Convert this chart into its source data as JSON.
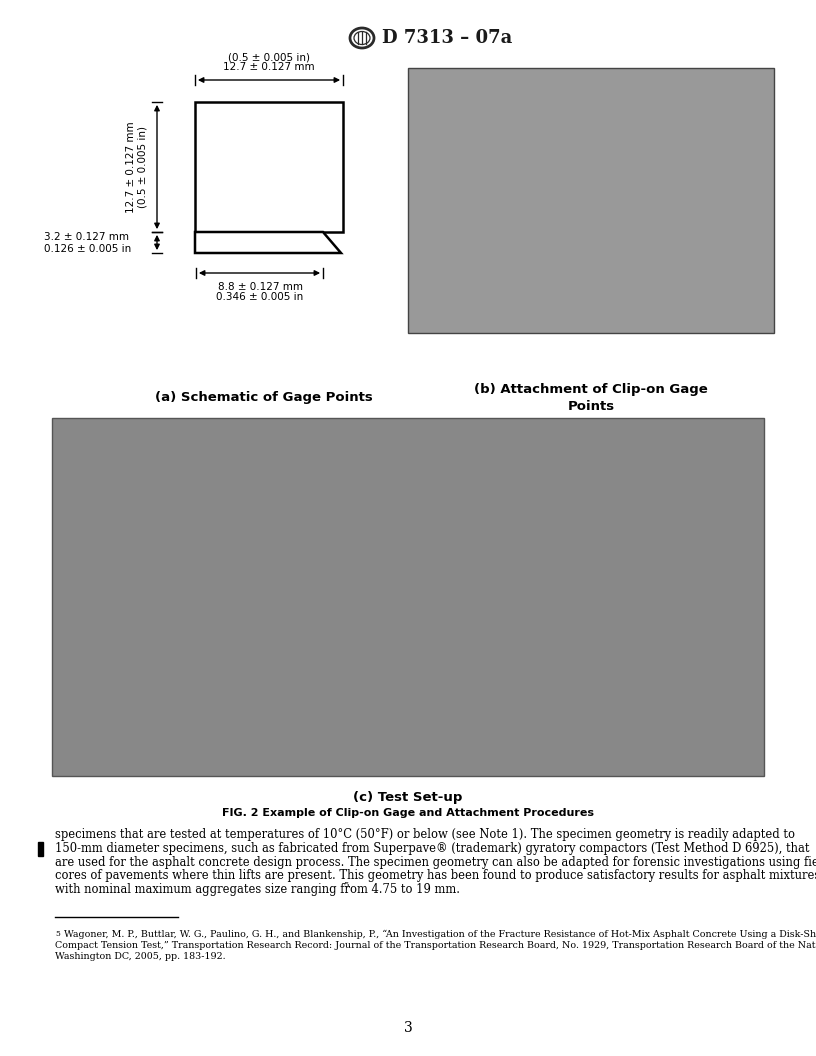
{
  "title": "D 7313 – 07a",
  "page_number": "3",
  "background_color": "#ffffff",
  "schematic_label": "(a) Schematic of Gage Points",
  "photo_label_line1": "(b) Attachment of Clip-on Gage",
  "photo_label_line2": "Points",
  "setup_label": "(c) Test Set-up",
  "fig_caption": "FIG. 2 Example of Clip-on Gage and Attachment Procedures",
  "dim_top_mm": "12.7 ± 0.127 mm",
  "dim_top_in": "(0.5 ± 0.005 in)",
  "dim_left_mm": "12.7 ± 0.127 mm",
  "dim_left_in": "(0.5 ± 0.005 in)",
  "dim_small_h_mm": "3.2 ± 0.127 mm",
  "dim_small_h_in": "0.126 ± 0.005 in",
  "dim_bottom_mm": "8.8 ± 0.127 mm",
  "dim_bottom_in": "0.346 ± 0.005 in",
  "body_text_lines": [
    "specimens that are tested at temperatures of 10°C (50°F) or below (see Note 1). The specimen geometry is readily adapted to",
    "150-mm diameter specimens, such as fabricated from Superpave® (trademark) gyratory compactors (Test Method D 6925), that",
    "are used for the asphalt concrete design process. The specimen geometry can also be adapted for forensic investigations using field",
    "cores of pavements where thin lifts are present. This geometry has been found to produce satisfactory results for asphalt mixtures",
    "with nominal maximum aggregates size ranging from 4.75 to 19 mm."
  ],
  "body_superscript": "5",
  "footnote_text_lines": [
    " Wagoner, M. P., Buttlar, W. G., Paulino, G. H., and Blankenship, P., “An Investigation of the Fracture Resistance of Hot-Mix Asphalt Concrete Using a Disk-Shaped",
    "Compact Tension Test,” Transportation Research Record: Journal of the Transportation Research Board, No. 1929, Transportation Research Board of the National Academies,",
    "Washington DC, 2005, pp. 183-192."
  ],
  "footnote_number": "5"
}
